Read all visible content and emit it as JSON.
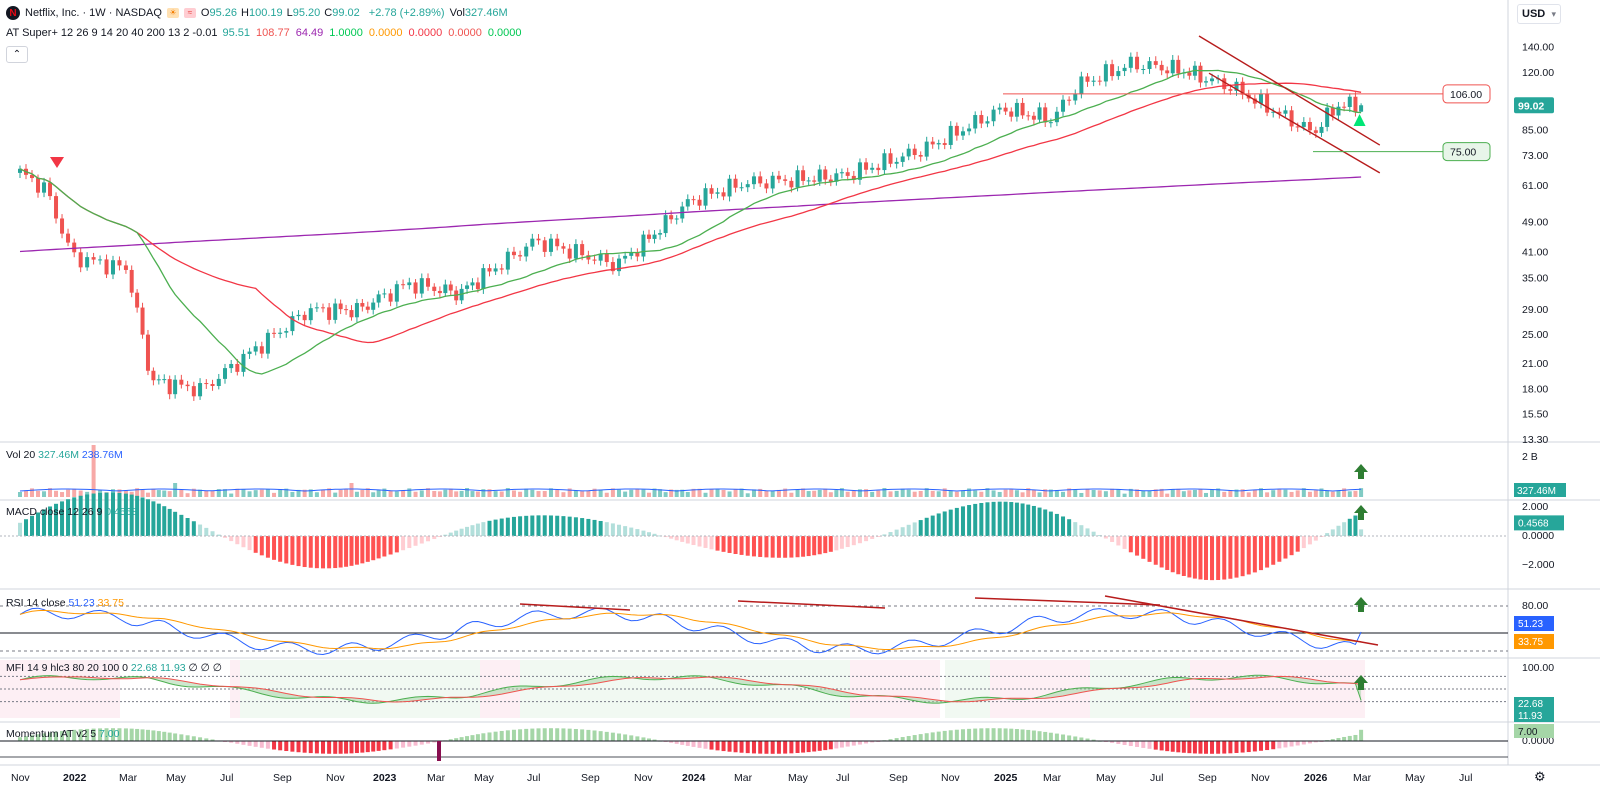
{
  "header": {
    "symbol": "Netflix, Inc. · 1W · NASDAQ",
    "ohlc": [
      {
        "k": "O",
        "v": "95.26"
      },
      {
        "k": "H",
        "v": "100.19"
      },
      {
        "k": "L",
        "v": "95.20"
      },
      {
        "k": "C",
        "v": "99.02"
      }
    ],
    "change": "+2.78 (+2.89%)",
    "vol_label": "Vol",
    "vol_value": "327.46M",
    "indicator_name": "AT Super+ 12 26 9 14 20 40 200 13 2 -0.01",
    "indicator_values": [
      {
        "v": "95.51",
        "c": "#26a69a"
      },
      {
        "v": "108.77",
        "c": "#ef5350"
      },
      {
        "v": "64.49",
        "c": "#9c27b0"
      },
      {
        "v": "1.0000",
        "c": "#00c853"
      },
      {
        "v": "0.0000",
        "c": "#ff9800"
      },
      {
        "v": "0.0000",
        "c": "#f23645"
      },
      {
        "v": "0.0000",
        "c": "#ef5350"
      },
      {
        "v": "0.0000",
        "c": "#00c853"
      }
    ],
    "collapse_icon": "chevron-up-icon",
    "collapse_glyph": "⌃",
    "logo_letter": "N"
  },
  "currency": {
    "label": "USD",
    "icon": "chevron-down-icon",
    "glyph": "▾"
  },
  "settings_icon": {
    "name": "gear-icon",
    "glyph": "⚙"
  },
  "colors": {
    "up": "#26a69a",
    "down": "#ef5350",
    "sma20": "#4caf50",
    "sma40": "#f23645",
    "sma200": "#9c27b0",
    "rsi": "#2962ff",
    "rsi_ma": "#ff9800",
    "trend": "#b71c1c"
  },
  "chart_data": [
    {
      "type": "candlestick",
      "scale": "log",
      "x_ticks": [
        "Nov",
        "2022",
        "Mar",
        "May",
        "Jul",
        "Sep",
        "Nov",
        "2023",
        "Mar",
        "May",
        "Jul",
        "Sep",
        "Nov",
        "2024",
        "Mar",
        "May",
        "Jul",
        "Sep",
        "Nov",
        "2025",
        "Mar",
        "May",
        "Jul",
        "Sep",
        "Nov",
        "2026",
        "Mar",
        "May",
        "Jul"
      ],
      "x_tick_years": [
        "2022",
        "2023",
        "2024",
        "2025",
        "2026"
      ],
      "y_ticks": [
        140,
        120,
        99.02,
        85,
        73,
        61,
        49,
        41,
        35,
        29,
        25,
        21,
        18,
        15.5,
        13.3
      ],
      "y_tick_labels": [
        "140.00",
        "120.00",
        "99.02",
        "85.00",
        "73.00",
        "61.00",
        "49.00",
        "41.00",
        "35.00",
        "29.00",
        "25.00",
        "21.00",
        "18.00",
        "15.50",
        "13.30"
      ],
      "price_labels": [
        {
          "value": 106.0,
          "text": "106.00",
          "color": "#ef5350"
        },
        {
          "value": 75.0,
          "text": "75.00",
          "color": "#4caf50"
        },
        {
          "value": 99.02,
          "text": "99.02",
          "color": "#26a69a"
        }
      ],
      "key_points": [
        {
          "t": "2021-11",
          "c": 66
        },
        {
          "t": "2021-12",
          "c": 60
        },
        {
          "t": "2022-01",
          "c": 40
        },
        {
          "t": "2022-03",
          "c": 37
        },
        {
          "t": "2022-04",
          "c": 19
        },
        {
          "t": "2022-06",
          "c": 18
        },
        {
          "t": "2022-08",
          "c": 23
        },
        {
          "t": "2022-10",
          "c": 29
        },
        {
          "t": "2022-12",
          "c": 29
        },
        {
          "t": "2023-02",
          "c": 34
        },
        {
          "t": "2023-04",
          "c": 32
        },
        {
          "t": "2023-07",
          "c": 44
        },
        {
          "t": "2023-10",
          "c": 38
        },
        {
          "t": "2024-01",
          "c": 56
        },
        {
          "t": "2024-03",
          "c": 62
        },
        {
          "t": "2024-07",
          "c": 65
        },
        {
          "t": "2024-10",
          "c": 76
        },
        {
          "t": "2025-01",
          "c": 97
        },
        {
          "t": "2025-03",
          "c": 91
        },
        {
          "t": "2025-04",
          "c": 112
        },
        {
          "t": "2025-06",
          "c": 127
        },
        {
          "t": "2025-08",
          "c": 122
        },
        {
          "t": "2025-10",
          "c": 110
        },
        {
          "t": "2026-01",
          "c": 84
        },
        {
          "t": "2026-02",
          "c": 99.02
        }
      ],
      "sma_series": [
        "SMA 20",
        "SMA 40",
        "SMA 200"
      ]
    },
    {
      "type": "bar",
      "name": "Vol 20",
      "values_text": [
        "327.46M",
        "238.76M"
      ],
      "y_ticks": [
        "2 B"
      ],
      "last_label": "327.46M"
    },
    {
      "type": "bar",
      "name": "MACD close 12 26 9",
      "values_text": [
        "0.4568"
      ],
      "y_ticks": [
        "2.000",
        "0.0000",
        "−2.000"
      ],
      "y_tick_values": [
        2,
        0,
        -2
      ],
      "last_label": "0.4568"
    },
    {
      "type": "line",
      "name": "RSI 14 close",
      "values_text": [
        "51.23",
        "33.75"
      ],
      "y_ticks": [
        "80.00"
      ],
      "y_tick_values": [
        80
      ],
      "last_labels": [
        {
          "text": "51.23",
          "color": "#2962ff"
        },
        {
          "text": "33.75",
          "color": "#ff9800"
        }
      ]
    },
    {
      "type": "area",
      "name": "MFI 14 9 hlc3 80 20 100 0",
      "values_text": [
        "22.68",
        "11.93",
        "∅",
        "∅",
        "∅"
      ],
      "y_ticks": [
        "100.00"
      ],
      "y_tick_values": [
        100
      ],
      "last_labels": [
        {
          "text": "22.68",
          "color": "#26a69a"
        },
        {
          "text": "11.93",
          "color": "#26a69a"
        }
      ]
    },
    {
      "type": "bar",
      "name": "Momentum AT v2 5",
      "values_text": [
        "7.00"
      ],
      "y_ticks": [
        "0.0000"
      ],
      "last_label": "7.00"
    }
  ]
}
